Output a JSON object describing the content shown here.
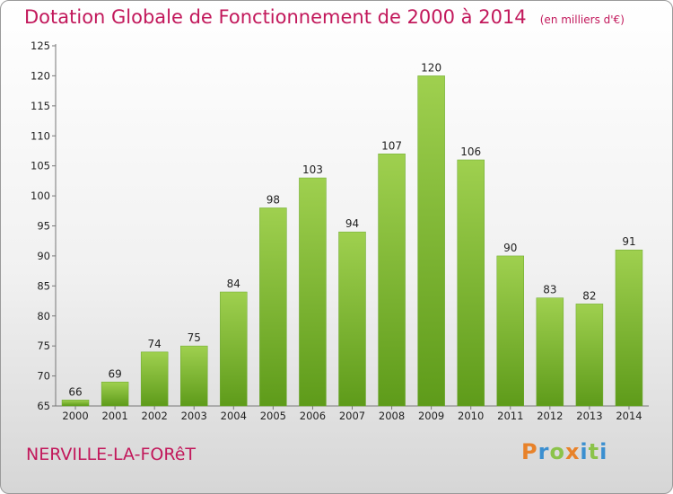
{
  "header": {
    "title": "Dotation Globale de Fonctionnement de 2000 à 2014",
    "unit": "(en milliers d'€)"
  },
  "commune": "NERVILLE-LA-FORêT",
  "logo": {
    "text": "Proxiti",
    "letters": [
      "P",
      "r",
      "o",
      "x",
      "i",
      "t",
      "i"
    ],
    "colors": [
      "#e8822a",
      "#3b8fd0",
      "#8bc34a",
      "#e8822a",
      "#3b8fd0",
      "#8bc34a",
      "#3b8fd0"
    ]
  },
  "colors": {
    "bar_light": "#9fd04f",
    "bar_dark": "#5e9b1a",
    "title": "#c2185b"
  },
  "chart_data": {
    "type": "bar",
    "title": "Dotation Globale de Fonctionnement de 2000 à 2014",
    "subtitle": "(en milliers d'€)",
    "xlabel": "",
    "ylabel": "",
    "categories": [
      "2000",
      "2001",
      "2002",
      "2003",
      "2004",
      "2005",
      "2006",
      "2007",
      "2008",
      "2009",
      "2010",
      "2011",
      "2012",
      "2013",
      "2014"
    ],
    "values": [
      66,
      69,
      74,
      75,
      84,
      98,
      103,
      94,
      107,
      120,
      106,
      90,
      83,
      82,
      91
    ],
    "ylim": [
      65,
      125
    ],
    "yticks": [
      65,
      70,
      75,
      80,
      85,
      90,
      95,
      100,
      105,
      110,
      115,
      120,
      125
    ],
    "grid": false,
    "legend": "none"
  }
}
